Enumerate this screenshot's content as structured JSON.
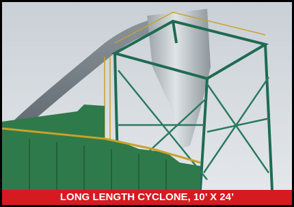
{
  "caption": "LONG LENGTH CYCLONE, 10’ X 24’"
}
